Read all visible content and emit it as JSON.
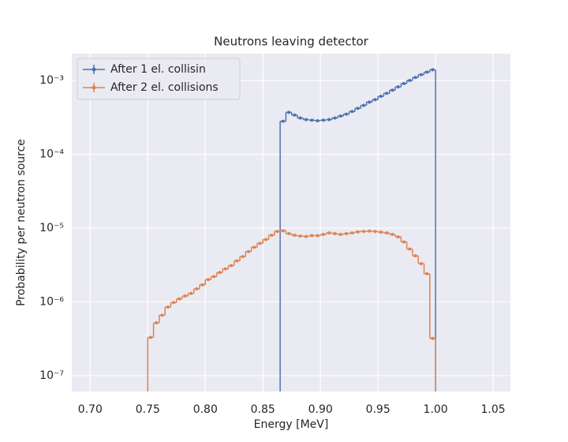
{
  "chart_data": {
    "type": "step",
    "title": "Neutrons leaving detector",
    "xlabel": "Energy [MeV]",
    "ylabel": "Probability per neutron source",
    "yscale": "log",
    "grid": true,
    "legend": "upper left",
    "xlim": [
      0.684,
      1.065
    ],
    "ylim": [
      6.1e-08,
      0.00231
    ],
    "xticks": [
      {
        "value": 0.7,
        "label": "0.70"
      },
      {
        "value": 0.75,
        "label": "0.75"
      },
      {
        "value": 0.8,
        "label": "0.80"
      },
      {
        "value": 0.85,
        "label": "0.85"
      },
      {
        "value": 0.9,
        "label": "0.90"
      },
      {
        "value": 0.95,
        "label": "0.95"
      },
      {
        "value": 1.0,
        "label": "1.00"
      },
      {
        "value": 1.05,
        "label": "1.05"
      }
    ],
    "yticks": [
      {
        "value": 1e-07,
        "label": "10⁻⁷"
      },
      {
        "value": 1e-06,
        "label": "10⁻⁶"
      },
      {
        "value": 1e-05,
        "label": "10⁻⁵"
      },
      {
        "value": 0.0001,
        "label": "10⁻⁴"
      },
      {
        "value": 0.001,
        "label": "10⁻³"
      }
    ],
    "series": [
      {
        "name": "After 1 el. collisin",
        "color": "#4c72b0",
        "x": [
          0.8675,
          0.8725,
          0.8775,
          0.8825,
          0.8875,
          0.8925,
          0.8975,
          0.9025,
          0.9075,
          0.9125,
          0.9175,
          0.9225,
          0.9275,
          0.9325,
          0.9375,
          0.9425,
          0.9475,
          0.9525,
          0.9575,
          0.9625,
          0.9675,
          0.9725,
          0.9775,
          0.9825,
          0.9875,
          0.9925,
          0.9975
        ],
        "values": [
          0.00028,
          0.00037,
          0.00034,
          0.00031,
          0.000295,
          0.00029,
          0.000285,
          0.00029,
          0.000295,
          0.00031,
          0.00033,
          0.00035,
          0.00038,
          0.00042,
          0.00046,
          0.00051,
          0.00055,
          0.00061,
          0.00067,
          0.00074,
          0.00082,
          0.00091,
          0.001,
          0.0011,
          0.0012,
          0.0013,
          0.0014
        ]
      },
      {
        "name": "After 2 el. collisions",
        "color": "#dd8452",
        "x": [
          0.7525,
          0.7575,
          0.7625,
          0.7675,
          0.7725,
          0.7775,
          0.7825,
          0.7875,
          0.7925,
          0.7975,
          0.8025,
          0.8075,
          0.8125,
          0.8175,
          0.8225,
          0.8275,
          0.8325,
          0.8375,
          0.8425,
          0.8475,
          0.8525,
          0.8575,
          0.8625,
          0.8675,
          0.8725,
          0.8775,
          0.8825,
          0.8875,
          0.8925,
          0.8975,
          0.9025,
          0.9075,
          0.9125,
          0.9175,
          0.9225,
          0.9275,
          0.9325,
          0.9375,
          0.9425,
          0.9475,
          0.9525,
          0.9575,
          0.9625,
          0.9675,
          0.9725,
          0.9775,
          0.9825,
          0.9875,
          0.9925,
          0.9975
        ],
        "values": [
          3.3e-07,
          5.2e-07,
          6.6e-07,
          8.5e-07,
          9.8e-07,
          1.1e-06,
          1.2e-06,
          1.3e-06,
          1.5e-06,
          1.7e-06,
          2e-06,
          2.2e-06,
          2.5e-06,
          2.8e-06,
          3.1e-06,
          3.6e-06,
          4.1e-06,
          4.8e-06,
          5.5e-06,
          6.2e-06,
          7e-06,
          8e-06,
          9e-06,
          9.2e-06,
          8.4e-06,
          8e-06,
          7.8e-06,
          7.7e-06,
          7.9e-06,
          7.9e-06,
          8.2e-06,
          8.6e-06,
          8.4e-06,
          8.2e-06,
          8.4e-06,
          8.6e-06,
          8.9e-06,
          9e-06,
          9.1e-06,
          9e-06,
          8.8e-06,
          8.6e-06,
          8.2e-06,
          7.6e-06,
          6.5e-06,
          5.2e-06,
          4.2e-06,
          3.3e-06,
          2.4e-06,
          3.2e-07
        ]
      }
    ]
  }
}
